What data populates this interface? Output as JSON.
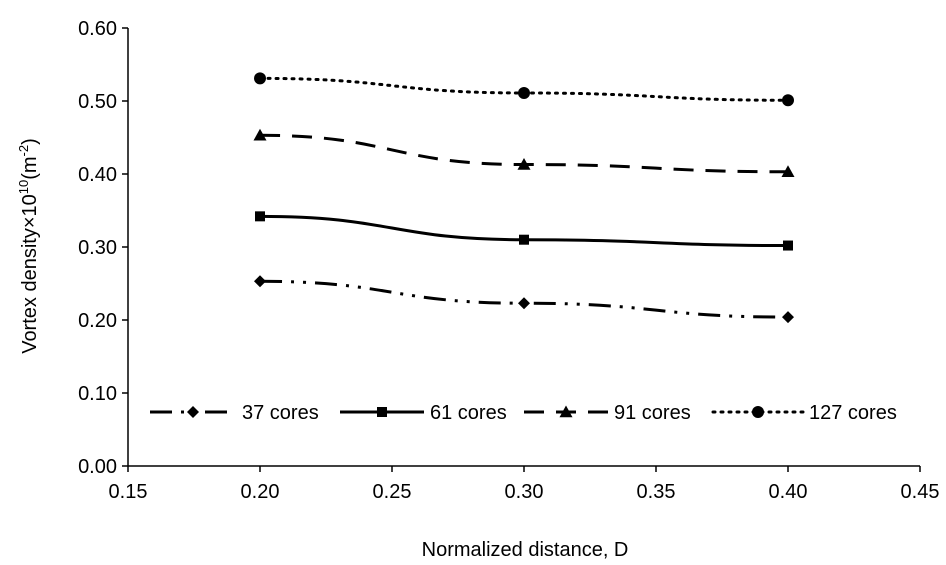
{
  "chart_data": {
    "type": "line",
    "title": "",
    "xlabel": "Normalized distance, D",
    "ylabel": {
      "prefix": "Vortex density×10",
      "sup1": "10",
      "middle": "(m",
      "sup2": "-2",
      "suffix": ")"
    },
    "xlim": [
      0.15,
      0.45
    ],
    "ylim": [
      0.0,
      0.6
    ],
    "xticks": [
      "0.15",
      "0.20",
      "0.25",
      "0.30",
      "0.35",
      "0.40",
      "0.45"
    ],
    "yticks": [
      "0.00",
      "0.10",
      "0.20",
      "0.30",
      "0.40",
      "0.50",
      "0.60"
    ],
    "grid": false,
    "legend_position": "bottom-inside",
    "x": [
      0.2,
      0.3,
      0.4
    ],
    "series": [
      {
        "name": "37 cores",
        "values": [
          0.253,
          0.223,
          0.204
        ],
        "marker": "diamond",
        "dash": "dash-dot-dot"
      },
      {
        "name": "61 cores",
        "values": [
          0.342,
          0.31,
          0.302
        ],
        "marker": "square",
        "dash": "solid"
      },
      {
        "name": "91 cores",
        "values": [
          0.453,
          0.413,
          0.403
        ],
        "marker": "triangle",
        "dash": "dashed"
      },
      {
        "name": "127 cores",
        "values": [
          0.531,
          0.511,
          0.501
        ],
        "marker": "circle",
        "dash": "dotted"
      }
    ],
    "colors": {
      "line": "#000000",
      "background": "#ffffff"
    }
  }
}
